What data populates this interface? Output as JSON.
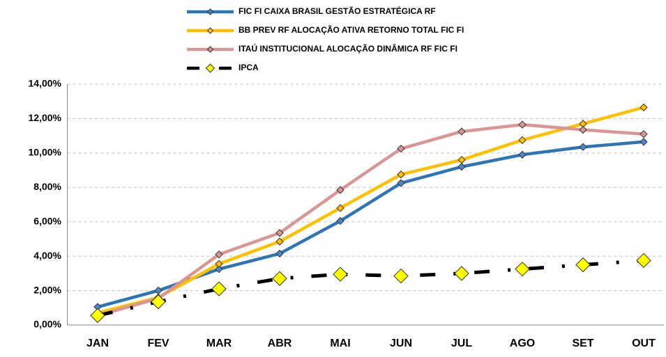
{
  "chart_data": {
    "type": "line",
    "categories": [
      "JAN",
      "FEV",
      "MAR",
      "ABR",
      "MAI",
      "JUN",
      "JUL",
      "AGO",
      "SET",
      "OUT"
    ],
    "series": [
      {
        "name": "FIC FI CAIXA BRASIL GESTÃO ESTRATÉGICA RF",
        "color": "#2e75b6",
        "marker_color": "#4a86c8",
        "values": [
          1.05,
          2.0,
          3.25,
          4.15,
          6.05,
          8.25,
          9.2,
          9.9,
          10.35,
          10.65
        ]
      },
      {
        "name": "BB PREV RF ALOCAÇÃO ATIVA RETORNO TOTAL FIC FI",
        "color": "#ffc000",
        "marker_color": "#ffc000",
        "values": [
          0.7,
          1.6,
          3.55,
          4.85,
          6.8,
          8.75,
          9.6,
          10.75,
          11.7,
          12.65
        ]
      },
      {
        "name": "ITAÚ INSTITUCIONAL ALOCAÇÃO DINÂMICA RF FIC FI",
        "color": "#d99694",
        "marker_color": "#d99694",
        "values": [
          0.55,
          1.55,
          4.1,
          5.35,
          7.85,
          10.25,
          11.25,
          11.65,
          11.35,
          11.1
        ]
      },
      {
        "name": "IPCA",
        "color": "#000000",
        "marker_color": "#ffff00",
        "dashed": true,
        "values": [
          0.55,
          1.35,
          2.1,
          2.7,
          2.95,
          2.85,
          3.0,
          3.25,
          3.5,
          3.75
        ]
      }
    ],
    "ylim": [
      0,
      14
    ],
    "yticks": [
      {
        "value": 0,
        "label": "0,00%"
      },
      {
        "value": 2,
        "label": "2,00%"
      },
      {
        "value": 4,
        "label": "4,00%"
      },
      {
        "value": 6,
        "label": "6,00%"
      },
      {
        "value": 8,
        "label": "8,00%"
      },
      {
        "value": 10,
        "label": "10,00%"
      },
      {
        "value": 12,
        "label": "12,00%"
      },
      {
        "value": 14,
        "label": "14,00%"
      }
    ],
    "grid": true
  }
}
